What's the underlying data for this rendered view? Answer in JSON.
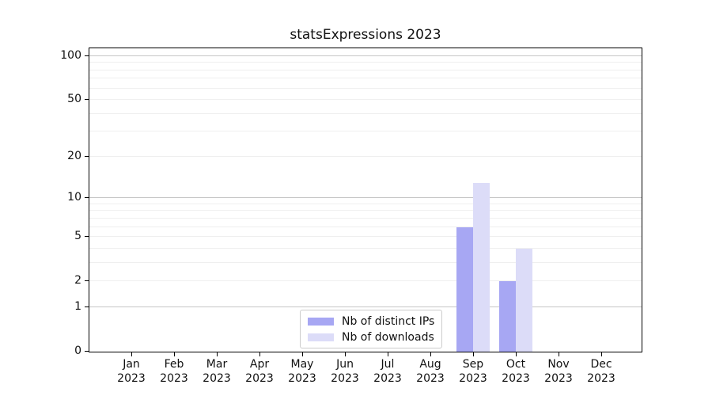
{
  "title": "statsExpressions 2023",
  "chart_data": {
    "type": "bar",
    "title": "statsExpressions 2023",
    "categories": [
      "Jan 2023",
      "Feb 2023",
      "Mar 2023",
      "Apr 2023",
      "May 2023",
      "Jun 2023",
      "Jul 2023",
      "Aug 2023",
      "Sep 2023",
      "Oct 2023",
      "Nov 2023",
      "Dec 2023"
    ],
    "series": [
      {
        "name": "Nb of distinct IPs",
        "color": "#a7a7f3",
        "values": [
          0,
          0,
          0,
          0,
          0,
          0,
          0,
          0,
          6,
          2,
          0,
          0
        ]
      },
      {
        "name": "Nb of downloads",
        "color": "#dcdcf8",
        "values": [
          0,
          0,
          0,
          0,
          0,
          0,
          0,
          0,
          13,
          4,
          0,
          0
        ]
      }
    ],
    "xlabel": "",
    "ylabel": "",
    "y_scale": "log10(v+1)",
    "y_tick_values": [
      0,
      1,
      2,
      5,
      10,
      20,
      50,
      100
    ],
    "y_major_gridlines": [
      1,
      10,
      100
    ],
    "y_minor_gridlines": [
      2,
      3,
      4,
      5,
      6,
      7,
      8,
      9,
      20,
      30,
      40,
      50,
      60,
      70,
      80,
      90
    ],
    "ylim": [
      0,
      113
    ],
    "grid": "horizontal",
    "legend_position": "lower center"
  },
  "colors": {
    "background": "#ffffff",
    "spine": "#000000",
    "major_grid": "#c6c6c6",
    "minor_grid": "#efefef",
    "text": "#111111",
    "legend_border": "#cccccc"
  }
}
